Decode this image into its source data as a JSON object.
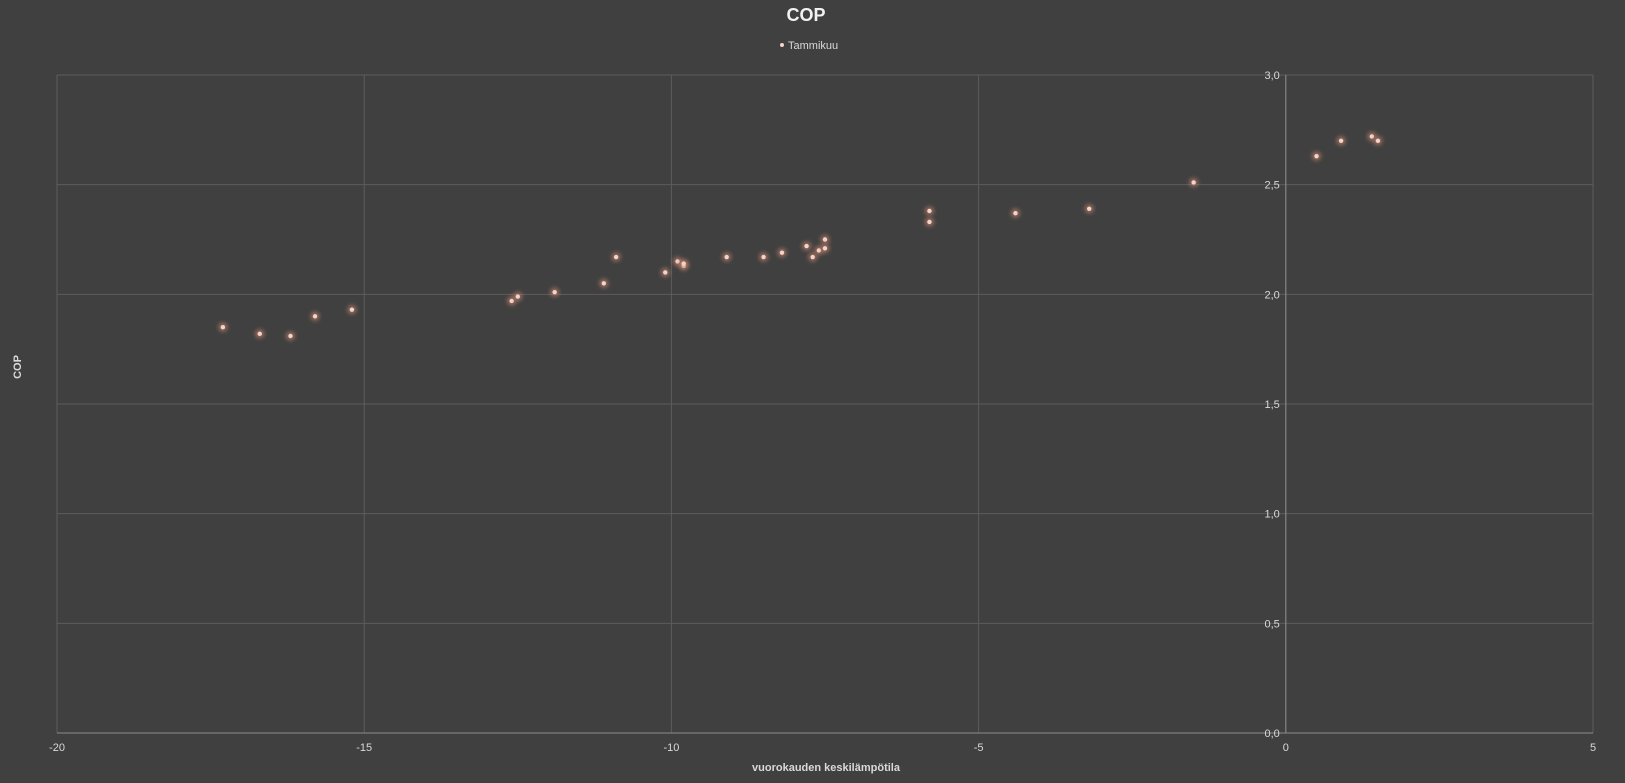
{
  "chart_data": {
    "type": "scatter",
    "title": "COP",
    "xlabel": "vuorokauden keskilämpötila",
    "ylabel": "COP",
    "xlim": [
      -20,
      5
    ],
    "ylim": [
      0,
      3
    ],
    "x_ticks": [
      "-20",
      "-15",
      "-10",
      "-5",
      "0",
      "5"
    ],
    "x_tick_values": [
      -20,
      -15,
      -10,
      -5,
      0,
      5
    ],
    "y_ticks": [
      "0,0",
      "0,5",
      "1,0",
      "1,5",
      "2,0",
      "2,5",
      "3,0"
    ],
    "y_tick_values": [
      0,
      0.5,
      1.0,
      1.5,
      2.0,
      2.5,
      3.0
    ],
    "grid": true,
    "legend_position": "top",
    "marker_color": "#f4d3c8",
    "marker_glow": "#c0826d",
    "series": [
      {
        "name": "Tammikuu",
        "points": [
          [
            -17.3,
            1.85
          ],
          [
            -16.7,
            1.82
          ],
          [
            -16.2,
            1.81
          ],
          [
            -15.8,
            1.9
          ],
          [
            -15.2,
            1.93
          ],
          [
            -12.6,
            1.97
          ],
          [
            -12.5,
            1.99
          ],
          [
            -11.9,
            2.01
          ],
          [
            -11.1,
            2.05
          ],
          [
            -10.9,
            2.17
          ],
          [
            -10.1,
            2.1
          ],
          [
            -9.9,
            2.15
          ],
          [
            -9.8,
            2.13
          ],
          [
            -9.8,
            2.14
          ],
          [
            -9.1,
            2.17
          ],
          [
            -8.5,
            2.17
          ],
          [
            -8.2,
            2.19
          ],
          [
            -7.8,
            2.22
          ],
          [
            -7.7,
            2.17
          ],
          [
            -7.6,
            2.2
          ],
          [
            -7.5,
            2.25
          ],
          [
            -7.5,
            2.21
          ],
          [
            -5.8,
            2.38
          ],
          [
            -5.8,
            2.33
          ],
          [
            -4.4,
            2.37
          ],
          [
            -3.2,
            2.39
          ],
          [
            -1.5,
            2.51
          ],
          [
            0.5,
            2.63
          ],
          [
            0.9,
            2.7
          ],
          [
            1.4,
            2.72
          ],
          [
            1.5,
            2.7
          ]
        ]
      }
    ]
  }
}
